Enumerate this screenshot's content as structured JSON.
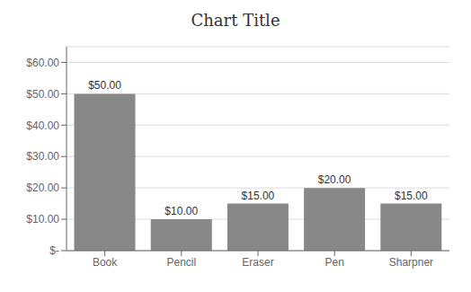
{
  "chart_data": {
    "type": "bar",
    "title": "Chart Title",
    "categories": [
      "Book",
      "Pencil",
      "Eraser",
      "Pen",
      "Sharpner"
    ],
    "values": [
      50,
      10,
      15,
      20,
      15
    ],
    "value_labels": [
      "$50.00",
      "$10.00",
      "$15.00",
      "$20.00",
      "$15.00"
    ],
    "color": "#888888",
    "ylim": [
      0,
      65
    ],
    "yticks": [
      {
        "value": 0,
        "label": "$-"
      },
      {
        "value": 10,
        "label": "$10.00"
      },
      {
        "value": 20,
        "label": "$20.00"
      },
      {
        "value": 30,
        "label": "$30.00"
      },
      {
        "value": 40,
        "label": "$40.00"
      },
      {
        "value": 50,
        "label": "$50.00"
      },
      {
        "value": 60,
        "label": "$60.00"
      }
    ],
    "grid": true,
    "data_labels": true
  }
}
